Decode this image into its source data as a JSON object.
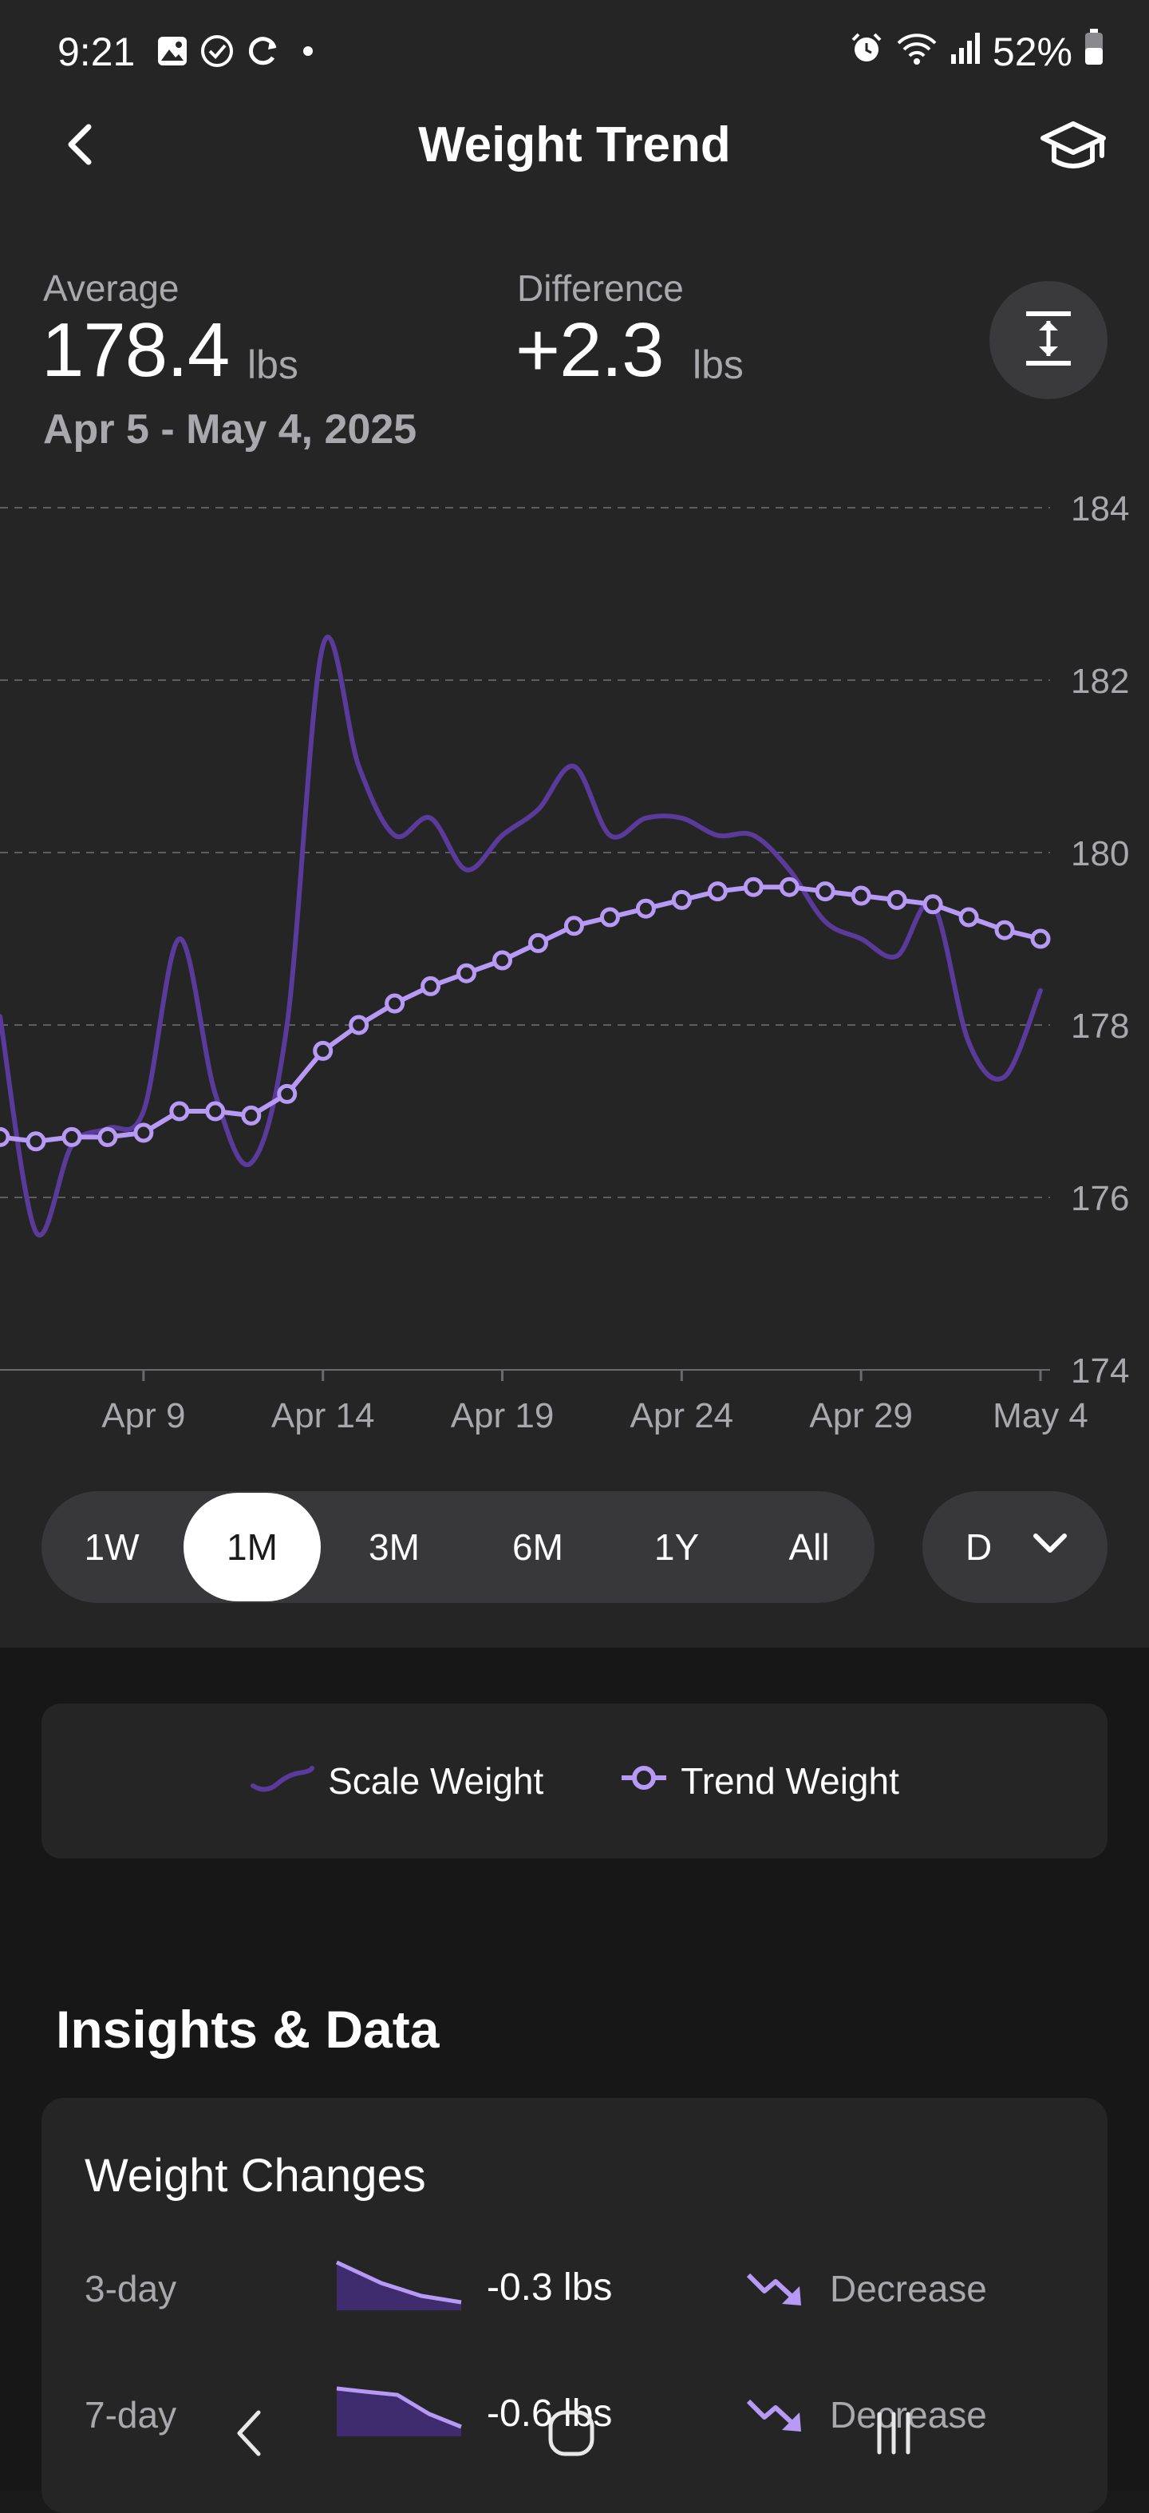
{
  "status_bar": {
    "time": "9:21",
    "battery": "52%",
    "icons": [
      "image-icon",
      "check-circle-icon",
      "sync-icon",
      "dot-icon",
      "alarm-icon",
      "wifi-icon",
      "signal-icon",
      "battery-icon"
    ]
  },
  "header": {
    "title": "Weight Trend",
    "back_icon": "chevron-left-icon",
    "learn_icon": "graduation-cap-icon"
  },
  "summary": {
    "average_label": "Average",
    "average_value": "178.4",
    "average_unit": "lbs",
    "difference_label": "Difference",
    "difference_value": "+2.3",
    "difference_unit": "lbs",
    "date_range": "Apr 5 - May 4, 2025",
    "fit_icon": "vertical-fit-icon"
  },
  "chart_data": {
    "type": "line",
    "x_ticks": [
      "Apr 9",
      "Apr 14",
      "Apr 19",
      "Apr 24",
      "Apr 29",
      "May 4"
    ],
    "y_ticks": [
      "184",
      "182",
      "180",
      "178",
      "176",
      "174"
    ],
    "ylim": [
      174,
      184
    ],
    "xlim": [
      "Apr 5",
      "May 4"
    ],
    "grid": true,
    "series": [
      {
        "name": "Scale Weight",
        "color": "#5a3b9c",
        "style": "smooth-line",
        "points": [
          [
            "Apr 5",
            178.1
          ],
          [
            "Apr 6",
            175.6
          ],
          [
            "Apr 7",
            176.6
          ],
          [
            "Apr 8",
            176.8
          ],
          [
            "Apr 9",
            177.0
          ],
          [
            "Apr 10",
            179.0
          ],
          [
            "Apr 11",
            177.2
          ],
          [
            "Apr 12",
            176.4
          ],
          [
            "Apr 13",
            178.0
          ],
          [
            "Apr 14",
            182.4
          ],
          [
            "Apr 15",
            181.0
          ],
          [
            "Apr 16",
            180.2
          ],
          [
            "Apr 17",
            180.4
          ],
          [
            "Apr 18",
            179.8
          ],
          [
            "Apr 19",
            180.2
          ],
          [
            "Apr 20",
            180.5
          ],
          [
            "Apr 21",
            181.0
          ],
          [
            "Apr 22",
            180.2
          ],
          [
            "Apr 23",
            180.4
          ],
          [
            "Apr 24",
            180.4
          ],
          [
            "Apr 25",
            180.2
          ],
          [
            "Apr 26",
            180.2
          ],
          [
            "Apr 27",
            179.8
          ],
          [
            "Apr 28",
            179.2
          ],
          [
            "Apr 29",
            179.0
          ],
          [
            "Apr 30",
            178.8
          ],
          [
            "May 1",
            179.4
          ],
          [
            "May 2",
            177.8
          ],
          [
            "May 3",
            177.4
          ],
          [
            "May 4",
            178.4
          ]
        ]
      },
      {
        "name": "Trend Weight",
        "color": "#b79af5",
        "style": "line-with-markers",
        "points": [
          [
            "Apr 5",
            176.7
          ],
          [
            "Apr 6",
            176.65
          ],
          [
            "Apr 7",
            176.7
          ],
          [
            "Apr 8",
            176.7
          ],
          [
            "Apr 9",
            176.75
          ],
          [
            "Apr 10",
            177.0
          ],
          [
            "Apr 11",
            177.0
          ],
          [
            "Apr 12",
            176.95
          ],
          [
            "Apr 13",
            177.2
          ],
          [
            "Apr 14",
            177.7
          ],
          [
            "Apr 15",
            178.0
          ],
          [
            "Apr 16",
            178.25
          ],
          [
            "Apr 17",
            178.45
          ],
          [
            "Apr 18",
            178.6
          ],
          [
            "Apr 19",
            178.75
          ],
          [
            "Apr 20",
            178.95
          ],
          [
            "Apr 21",
            179.15
          ],
          [
            "Apr 22",
            179.25
          ],
          [
            "Apr 23",
            179.35
          ],
          [
            "Apr 24",
            179.45
          ],
          [
            "Apr 25",
            179.55
          ],
          [
            "Apr 26",
            179.6
          ],
          [
            "Apr 27",
            179.6
          ],
          [
            "Apr 28",
            179.55
          ],
          [
            "Apr 29",
            179.5
          ],
          [
            "Apr 30",
            179.45
          ],
          [
            "May 1",
            179.4
          ],
          [
            "May 2",
            179.25
          ],
          [
            "May 3",
            179.1
          ],
          [
            "May 4",
            179.0
          ]
        ]
      }
    ]
  },
  "range_selector": {
    "options": [
      "1W",
      "1M",
      "3M",
      "6M",
      "1Y",
      "All"
    ],
    "selected": "1M",
    "granularity": "D",
    "dropdown_icon": "chevron-down-icon"
  },
  "legend": {
    "scale": "Scale Weight",
    "trend": "Trend Weight"
  },
  "insights": {
    "title": "Insights & Data",
    "weight_changes": {
      "title": "Weight Changes",
      "rows": [
        {
          "label": "3-day",
          "value": "-0.3 lbs",
          "direction": "Decrease"
        },
        {
          "label": "7-day",
          "value": "-0.6 lbs",
          "direction": "Decrease"
        }
      ]
    }
  },
  "navbar": {
    "icons": [
      "back-nav-icon",
      "home-nav-icon",
      "recents-nav-icon"
    ]
  }
}
